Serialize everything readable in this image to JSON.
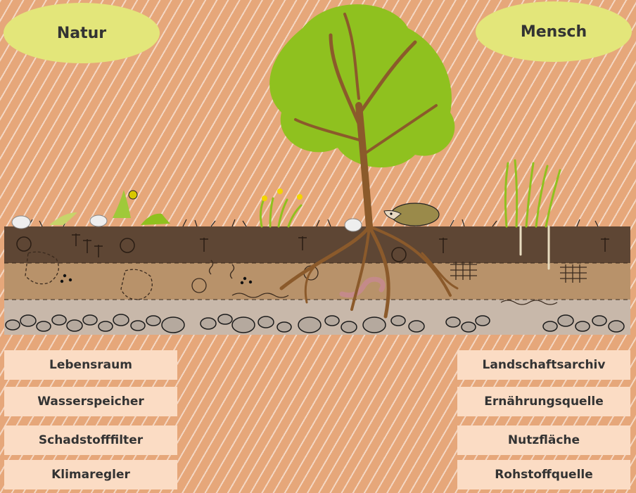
{
  "labels": {
    "left": "Natur",
    "right": "Mensch"
  },
  "functions_left": [
    "Lebensraum",
    "Wasserspeicher",
    "Schadstofffilter",
    "Klimaregler"
  ],
  "functions_right": [
    "Landschaftsarchiv",
    "Ernährungsquelle",
    "Nutzfläche",
    "Rohstoffquelle"
  ],
  "colors": {
    "background": "#e6a77a",
    "oval": "#e3e67a",
    "box": "#fbdcc4",
    "topsoil": "#5e4634",
    "subsoil": "#b8926a",
    "gravel": "#c8b8aa",
    "leaf": "#8fc11f",
    "trunk": "#8b5a2b"
  }
}
